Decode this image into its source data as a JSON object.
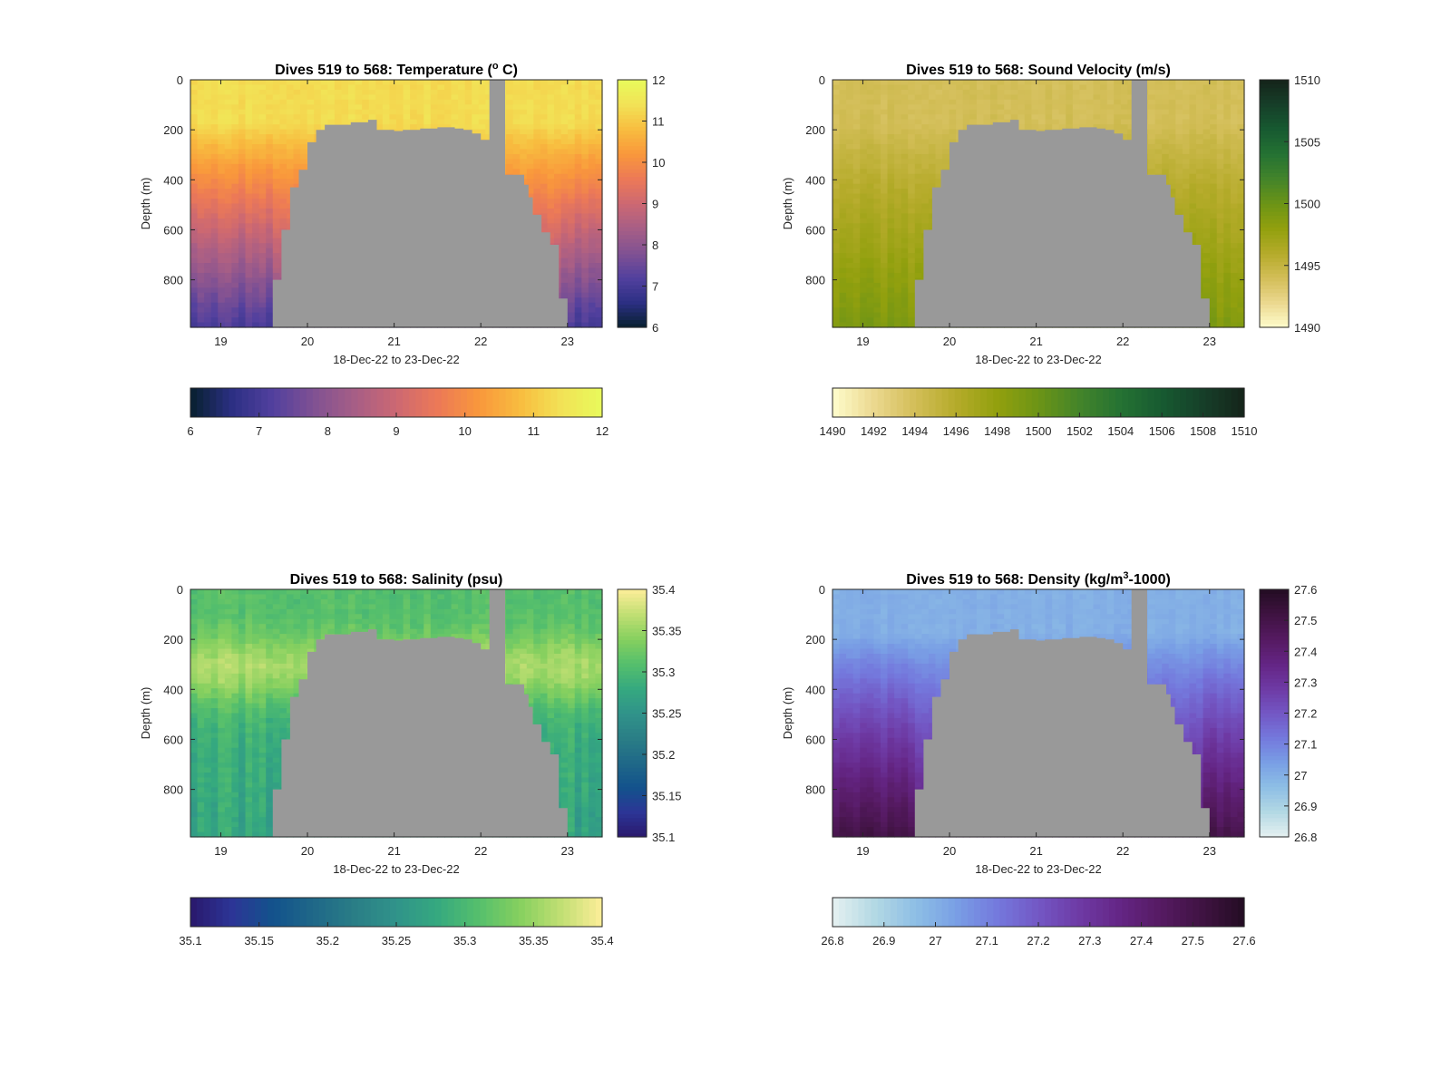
{
  "chart_data": [
    {
      "type": "heatmap",
      "title": "Dives 519 to 568: Temperature (° C)",
      "title_parts": {
        "pre": "Dives 519 to 568: Temperature (",
        "sup": "o",
        "post": " C)"
      },
      "xlabel": "18-Dec-22 to 23-Dec-22",
      "ylabel": "Depth (m)",
      "xlim": [
        18.65,
        23.4
      ],
      "ylim": [
        0,
        990
      ],
      "y_reversed": true,
      "x_ticks": [
        19,
        20,
        21,
        22,
        23
      ],
      "y_ticks": [
        0,
        200,
        400,
        600,
        800
      ],
      "colorbar": {
        "min": 6,
        "max": 12,
        "ticks": [
          "6",
          "7",
          "8",
          "9",
          "10",
          "11",
          "12"
        ],
        "colormap": "thermal"
      },
      "colors": [
        "#07202e",
        "#2b2f83",
        "#52409e",
        "#805193",
        "#a75e86",
        "#cc6872",
        "#ec7957",
        "#f9973c",
        "#f8bc3f",
        "#f2e256",
        "#e8fa5b"
      ],
      "profile": {
        "top_value": 11.3,
        "bottom_value": 7.6,
        "edge_bottom_value": 7.0,
        "noise": 0.35
      }
    },
    {
      "type": "heatmap",
      "title": "Dives 519 to 568: Sound Velocity (m/s)",
      "title_parts": {
        "pre": "Dives 519 to 568: Sound Velocity (m/s)",
        "sup": "",
        "post": ""
      },
      "xlabel": "18-Dec-22 to 23-Dec-22",
      "ylabel": "Depth (m)",
      "xlim": [
        18.65,
        23.4
      ],
      "ylim": [
        0,
        990
      ],
      "y_reversed": true,
      "x_ticks": [
        19,
        20,
        21,
        22,
        23
      ],
      "y_ticks": [
        0,
        200,
        400,
        600,
        800
      ],
      "colorbar": {
        "min": 1490,
        "max": 1510,
        "ticks": [
          "1490",
          "1492",
          "1494",
          "1496",
          "1498",
          "1500",
          "1502",
          "1504",
          "1506",
          "1508",
          "1510"
        ],
        "ticks_right": [
          "1490",
          "1495",
          "1500",
          "1505",
          "1510"
        ],
        "colormap": "speed"
      },
      "colors": [
        "#fffdcd",
        "#ebd88f",
        "#d3be58",
        "#b5ab2a",
        "#92a00e",
        "#6c9416",
        "#43842a",
        "#257233",
        "#175a31",
        "#163f29",
        "#15241a"
      ],
      "profile": {
        "top_value": 1494.0,
        "bottom_value": 1499.5,
        "edge_bottom_value": 1499.0,
        "noise": 0.9
      }
    },
    {
      "type": "heatmap",
      "title": "Dives 519 to 568: Salinity (psu)",
      "title_parts": {
        "pre": "Dives 519 to 568: Salinity (psu)",
        "sup": "",
        "post": ""
      },
      "xlabel": "18-Dec-22 to 23-Dec-22",
      "ylabel": "Depth (m)",
      "xlim": [
        18.65,
        23.4
      ],
      "ylim": [
        0,
        990
      ],
      "y_reversed": true,
      "x_ticks": [
        19,
        20,
        21,
        22,
        23
      ],
      "y_ticks": [
        0,
        200,
        400,
        600,
        800
      ],
      "colorbar": {
        "min": 35.1,
        "max": 35.4,
        "ticks": [
          "35.1",
          "35.15",
          "35.2",
          "35.25",
          "35.3",
          "35.35",
          "35.4"
        ],
        "colormap": "haline"
      },
      "colors": [
        "#2a186c",
        "#2c3596",
        "#13528c",
        "#1f6888",
        "#2a7e86",
        "#30938a",
        "#35a97f",
        "#55bf6c",
        "#86d05f",
        "#c1df73",
        "#fdee99"
      ],
      "profile": {
        "top_value": 35.31,
        "bottom_value": 35.27,
        "mid_value": 35.37,
        "noise": 0.03
      }
    },
    {
      "type": "heatmap",
      "title": "Dives 519 to 568: Density (kg/m³-1000)",
      "title_parts": {
        "pre": "Dives 519 to 568: Density (kg/m",
        "sup": "3",
        "post": "-1000)"
      },
      "xlabel": "18-Dec-22 to 23-Dec-22",
      "ylabel": "Depth (m)",
      "xlim": [
        18.65,
        23.4
      ],
      "ylim": [
        0,
        990
      ],
      "y_reversed": true,
      "x_ticks": [
        19,
        20,
        21,
        22,
        23
      ],
      "y_ticks": [
        0,
        200,
        400,
        600,
        800
      ],
      "colorbar": {
        "min": 26.8,
        "max": 27.6,
        "ticks": [
          "26.8",
          "26.9",
          "27",
          "27.1",
          "27.2",
          "27.3",
          "27.4",
          "27.5",
          "27.6"
        ],
        "colormap": "dense"
      },
      "colors": [
        "#e6f1f1",
        "#b4d9e4",
        "#8ebfe5",
        "#799fe5",
        "#7479dd",
        "#7357c4",
        "#6e3aa4",
        "#642584",
        "#551a61",
        "#3f1341",
        "#230c23"
      ],
      "profile": {
        "top_value": 27.0,
        "bottom_value": 27.42,
        "edge_bottom_value": 27.5,
        "noise": 0.04
      }
    }
  ],
  "seafloor": {
    "color": "#999999",
    "comment_free": true,
    "left_edge_days": [
      [
        19.6,
        800
      ],
      [
        19.7,
        600
      ],
      [
        19.8,
        430
      ],
      [
        19.9,
        360
      ],
      [
        20.0,
        250
      ],
      [
        20.1,
        200
      ],
      [
        20.2,
        180
      ],
      [
        20.5,
        170
      ],
      [
        20.6,
        170
      ],
      [
        20.7,
        160
      ],
      [
        20.8,
        200
      ],
      [
        21.0,
        205
      ],
      [
        21.1,
        200
      ],
      [
        21.3,
        195
      ],
      [
        21.5,
        190
      ],
      [
        21.7,
        195
      ],
      [
        21.8,
        200
      ],
      [
        21.9,
        215
      ],
      [
        22.0,
        240
      ],
      [
        22.1,
        260
      ]
    ],
    "right_edge_days": [
      [
        22.2,
        0
      ],
      [
        22.28,
        0
      ],
      [
        22.28,
        380
      ],
      [
        22.45,
        380
      ],
      [
        22.5,
        420
      ],
      [
        22.55,
        470
      ],
      [
        22.6,
        540
      ],
      [
        22.7,
        610
      ],
      [
        22.8,
        660
      ],
      [
        22.9,
        875
      ],
      [
        22.95,
        875
      ],
      [
        23.0,
        990
      ]
    ],
    "spike": {
      "x_start": 22.1,
      "x_end": 22.2
    }
  }
}
